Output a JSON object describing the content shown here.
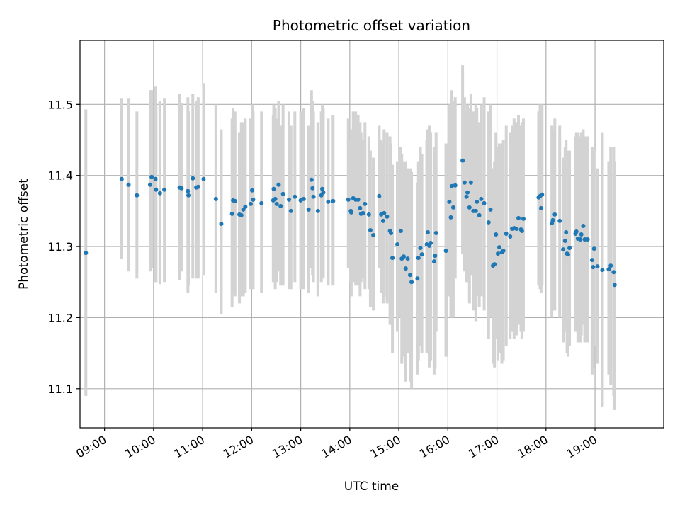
{
  "chart_data": {
    "type": "scatter",
    "title": "Photometric offset variation",
    "xlabel": "UTC time",
    "ylabel": "Photometric offset",
    "x_unit": "hour",
    "xlim": [
      8.5,
      20.4
    ],
    "ylim": [
      11.045,
      11.59
    ],
    "grid": true,
    "x_tick_values": [
      9,
      10,
      11,
      12,
      13,
      14,
      15,
      16,
      17,
      18,
      19
    ],
    "x_tick_labels": [
      "09:00",
      "10:00",
      "11:00",
      "12:00",
      "13:00",
      "14:00",
      "15:00",
      "16:00",
      "17:00",
      "18:00",
      "19:00"
    ],
    "y_tick_values": [
      11.1,
      11.2,
      11.3,
      11.4,
      11.5
    ],
    "y_tick_labels": [
      "11.1",
      "11.2",
      "11.3",
      "11.4",
      "11.5"
    ],
    "colors": {
      "point": "#1f77b4",
      "error_bar": "#d3d3d3",
      "grid": "#b0b0b0"
    },
    "series": [
      {
        "points": [
          [
            8.62,
            11.291,
            11.09,
            11.493
          ],
          [
            9.35,
            11.395,
            11.283,
            11.508
          ],
          [
            9.49,
            11.387,
            11.265,
            11.508
          ],
          [
            9.66,
            11.372,
            11.255,
            11.49
          ],
          [
            9.93,
            11.387,
            11.265,
            11.52
          ],
          [
            9.96,
            11.398,
            11.27,
            11.52
          ],
          [
            10.04,
            11.395,
            11.25,
            11.525
          ],
          [
            10.05,
            11.38,
            11.25,
            11.5
          ],
          [
            10.13,
            11.375,
            11.247,
            11.505
          ],
          [
            10.22,
            11.38,
            11.25,
            11.508
          ],
          [
            10.53,
            11.383,
            11.253,
            11.515
          ],
          [
            10.57,
            11.382,
            11.265,
            11.502
          ],
          [
            10.7,
            11.378,
            11.235,
            11.51
          ],
          [
            10.71,
            11.372,
            11.245,
            11.49
          ],
          [
            10.8,
            11.396,
            11.255,
            11.515
          ],
          [
            10.87,
            11.383,
            11.255,
            11.505
          ],
          [
            10.91,
            11.384,
            11.255,
            11.51
          ],
          [
            11.02,
            11.395,
            11.26,
            11.53
          ],
          [
            11.27,
            11.367,
            11.235,
            11.5
          ],
          [
            11.38,
            11.332,
            11.205,
            11.465
          ],
          [
            11.6,
            11.346,
            11.215,
            11.48
          ],
          [
            11.62,
            11.365,
            11.235,
            11.495
          ],
          [
            11.66,
            11.364,
            11.23,
            11.49
          ],
          [
            11.75,
            11.345,
            11.22,
            11.46
          ],
          [
            11.79,
            11.344,
            11.23,
            11.475
          ],
          [
            11.83,
            11.352,
            11.23,
            11.475
          ],
          [
            11.87,
            11.356,
            11.235,
            11.48
          ],
          [
            11.98,
            11.36,
            11.24,
            11.48
          ],
          [
            12.01,
            11.379,
            11.255,
            11.5
          ],
          [
            12.03,
            11.366,
            11.24,
            11.49
          ],
          [
            12.2,
            11.361,
            11.235,
            11.49
          ],
          [
            12.44,
            11.365,
            11.25,
            11.485
          ],
          [
            12.45,
            11.381,
            11.26,
            11.5
          ],
          [
            12.48,
            11.367,
            11.24,
            11.495
          ],
          [
            12.51,
            11.36,
            11.25,
            11.48
          ],
          [
            12.55,
            11.387,
            11.265,
            11.505
          ],
          [
            12.59,
            11.357,
            11.245,
            11.47
          ],
          [
            12.64,
            11.374,
            11.245,
            11.5
          ],
          [
            12.76,
            11.366,
            11.24,
            11.49
          ],
          [
            12.8,
            11.35,
            11.24,
            11.47
          ],
          [
            12.88,
            11.37,
            11.25,
            11.49
          ],
          [
            13.0,
            11.365,
            11.24,
            11.49
          ],
          [
            13.06,
            11.367,
            11.24,
            11.495
          ],
          [
            13.16,
            11.352,
            11.235,
            11.47
          ],
          [
            13.22,
            11.394,
            11.27,
            11.52
          ],
          [
            13.24,
            11.382,
            11.26,
            11.505
          ],
          [
            13.26,
            11.37,
            11.25,
            11.49
          ],
          [
            13.35,
            11.35,
            11.23,
            11.475
          ],
          [
            13.42,
            11.372,
            11.25,
            11.49
          ],
          [
            13.44,
            11.381,
            11.26,
            11.5
          ],
          [
            13.46,
            11.376,
            11.255,
            11.495
          ],
          [
            13.56,
            11.363,
            11.245,
            11.48
          ],
          [
            13.66,
            11.364,
            11.245,
            11.485
          ],
          [
            13.97,
            11.366,
            11.27,
            11.48
          ],
          [
            14.02,
            11.35,
            11.25,
            11.45
          ],
          [
            14.03,
            11.348,
            11.23,
            11.465
          ],
          [
            14.07,
            11.368,
            11.25,
            11.49
          ],
          [
            14.12,
            11.366,
            11.245,
            11.49
          ],
          [
            14.17,
            11.366,
            11.245,
            11.485
          ],
          [
            14.21,
            11.354,
            11.23,
            11.475
          ],
          [
            14.23,
            11.346,
            11.25,
            11.46
          ],
          [
            14.27,
            11.347,
            11.255,
            11.45
          ],
          [
            14.31,
            11.36,
            11.24,
            11.475
          ],
          [
            14.39,
            11.345,
            11.24,
            11.455
          ],
          [
            14.42,
            11.323,
            11.215,
            11.435
          ],
          [
            14.48,
            11.316,
            11.21,
            11.425
          ],
          [
            14.6,
            11.371,
            11.27,
            11.47
          ],
          [
            14.64,
            11.345,
            11.235,
            11.45
          ],
          [
            14.68,
            11.336,
            11.22,
            11.445
          ],
          [
            14.7,
            11.347,
            11.23,
            11.465
          ],
          [
            14.76,
            11.342,
            11.22,
            11.46
          ],
          [
            14.82,
            11.322,
            11.19,
            11.455
          ],
          [
            14.84,
            11.319,
            11.2,
            11.445
          ],
          [
            14.87,
            11.284,
            11.15,
            11.415
          ],
          [
            14.97,
            11.303,
            11.18,
            11.42
          ],
          [
            15.04,
            11.322,
            11.2,
            11.44
          ],
          [
            15.06,
            11.283,
            11.135,
            11.43
          ],
          [
            15.1,
            11.286,
            11.145,
            11.42
          ],
          [
            15.14,
            11.269,
            11.11,
            11.42
          ],
          [
            15.18,
            11.283,
            11.15,
            11.41
          ],
          [
            15.23,
            11.26,
            11.11,
            11.41
          ],
          [
            15.26,
            11.25,
            11.1,
            11.405
          ],
          [
            15.38,
            11.255,
            11.12,
            11.39
          ],
          [
            15.4,
            11.284,
            11.14,
            11.42
          ],
          [
            15.44,
            11.298,
            11.16,
            11.44
          ],
          [
            15.47,
            11.289,
            11.15,
            11.43
          ],
          [
            15.57,
            11.303,
            11.15,
            11.45
          ],
          [
            15.59,
            11.32,
            11.18,
            11.465
          ],
          [
            15.62,
            11.301,
            11.13,
            11.47
          ],
          [
            15.65,
            11.305,
            11.14,
            11.46
          ],
          [
            15.72,
            11.279,
            11.12,
            11.44
          ],
          [
            15.74,
            11.287,
            11.13,
            11.44
          ],
          [
            15.76,
            11.319,
            11.18,
            11.46
          ],
          [
            15.96,
            11.294,
            11.145,
            11.445
          ],
          [
            16.03,
            11.363,
            11.23,
            11.5
          ],
          [
            16.06,
            11.341,
            11.2,
            11.485
          ],
          [
            16.08,
            11.385,
            11.25,
            11.52
          ],
          [
            16.11,
            11.355,
            11.2,
            11.505
          ],
          [
            16.15,
            11.386,
            11.255,
            11.51
          ],
          [
            16.3,
            11.421,
            11.29,
            11.555
          ],
          [
            16.34,
            11.39,
            11.265,
            11.51
          ],
          [
            16.38,
            11.37,
            11.25,
            11.49
          ],
          [
            16.4,
            11.376,
            11.25,
            11.5
          ],
          [
            16.44,
            11.355,
            11.22,
            11.495
          ],
          [
            16.47,
            11.39,
            11.26,
            11.515
          ],
          [
            16.52,
            11.35,
            11.21,
            11.49
          ],
          [
            16.57,
            11.35,
            11.195,
            11.5
          ],
          [
            16.59,
            11.363,
            11.23,
            11.495
          ],
          [
            16.64,
            11.344,
            11.215,
            11.475
          ],
          [
            16.68,
            11.367,
            11.23,
            11.5
          ],
          [
            16.74,
            11.361,
            11.21,
            11.51
          ],
          [
            16.83,
            11.334,
            11.17,
            11.49
          ],
          [
            16.87,
            11.352,
            11.2,
            11.5
          ],
          [
            16.92,
            11.273,
            11.135,
            11.41
          ],
          [
            16.95,
            11.275,
            11.13,
            11.42
          ],
          [
            16.98,
            11.317,
            11.17,
            11.46
          ],
          [
            17.02,
            11.29,
            11.14,
            11.44
          ],
          [
            17.05,
            11.299,
            11.15,
            11.445
          ],
          [
            17.1,
            11.292,
            11.135,
            11.445
          ],
          [
            17.13,
            11.294,
            11.14,
            11.45
          ],
          [
            17.19,
            11.318,
            11.16,
            11.47
          ],
          [
            17.27,
            11.314,
            11.17,
            11.46
          ],
          [
            17.31,
            11.325,
            11.18,
            11.47
          ],
          [
            17.35,
            11.326,
            11.17,
            11.48
          ],
          [
            17.4,
            11.325,
            11.175,
            11.475
          ],
          [
            17.44,
            11.34,
            11.19,
            11.485
          ],
          [
            17.49,
            11.324,
            11.18,
            11.47
          ],
          [
            17.54,
            11.339,
            11.18,
            11.48
          ],
          [
            17.51,
            11.322,
            11.17,
            11.475
          ],
          [
            17.85,
            11.369,
            11.245,
            11.49
          ],
          [
            17.88,
            11.371,
            11.24,
            11.5
          ],
          [
            17.92,
            11.373,
            11.245,
            11.5
          ],
          [
            17.9,
            11.354,
            11.235,
            11.47
          ],
          [
            18.12,
            11.333,
            11.2,
            11.47
          ],
          [
            18.14,
            11.337,
            11.21,
            11.465
          ],
          [
            18.18,
            11.345,
            11.21,
            11.48
          ],
          [
            18.28,
            11.336,
            11.2,
            11.47
          ],
          [
            18.35,
            11.296,
            11.165,
            11.425
          ],
          [
            18.39,
            11.308,
            11.18,
            11.44
          ],
          [
            18.41,
            11.32,
            11.19,
            11.45
          ],
          [
            18.43,
            11.29,
            11.15,
            11.43
          ],
          [
            18.45,
            11.289,
            11.145,
            11.435
          ],
          [
            18.48,
            11.298,
            11.16,
            11.435
          ],
          [
            18.6,
            11.318,
            11.18,
            11.455
          ],
          [
            18.62,
            11.321,
            11.185,
            11.46
          ],
          [
            18.65,
            11.311,
            11.165,
            11.46
          ],
          [
            18.7,
            11.31,
            11.165,
            11.455
          ],
          [
            18.72,
            11.317,
            11.175,
            11.46
          ],
          [
            18.76,
            11.329,
            11.19,
            11.465
          ],
          [
            18.79,
            11.31,
            11.165,
            11.455
          ],
          [
            18.85,
            11.31,
            11.165,
            11.455
          ],
          [
            18.94,
            11.281,
            11.12,
            11.44
          ],
          [
            18.96,
            11.271,
            11.13,
            11.41
          ],
          [
            18.98,
            11.297,
            11.16,
            11.435
          ],
          [
            19.05,
            11.272,
            11.135,
            11.41
          ],
          [
            19.15,
            11.267,
            11.075,
            11.46
          ],
          [
            19.28,
            11.268,
            11.12,
            11.42
          ],
          [
            19.32,
            11.273,
            11.105,
            11.44
          ],
          [
            19.38,
            11.264,
            11.09,
            11.44
          ],
          [
            19.4,
            11.246,
            11.07,
            11.42
          ]
        ]
      }
    ]
  }
}
